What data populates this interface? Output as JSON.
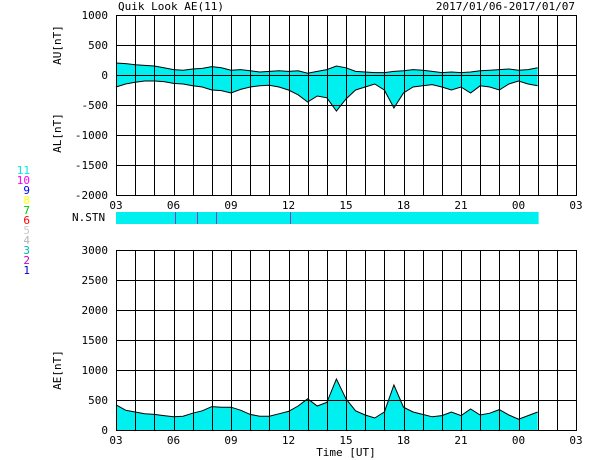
{
  "header": {
    "title": "Quik Look AE(11)",
    "date_range": "2017/01/06-2017/01/07"
  },
  "station_legend": [
    {
      "label": "11",
      "color": "#00e8e8"
    },
    {
      "label": "10",
      "color": "#ff00ff"
    },
    {
      "label": "9",
      "color": "#0000ff"
    },
    {
      "label": "8",
      "color": "#ffff00"
    },
    {
      "label": "7",
      "color": "#00c800"
    },
    {
      "label": "6",
      "color": "#ff0000"
    },
    {
      "label": "5",
      "color": "#c8c8c8"
    },
    {
      "label": "4",
      "color": "#b4b4b4"
    },
    {
      "label": "3",
      "color": "#00b4b4"
    },
    {
      "label": "2",
      "color": "#c800c8"
    },
    {
      "label": "1",
      "color": "#0000c8"
    }
  ],
  "nstn": {
    "label": "N.STN",
    "color": "#00f0f0",
    "data_end_hour": 1.05,
    "markers": [
      6.1,
      7.2,
      8.2,
      12.1
    ],
    "marker_color": "#8040c0"
  },
  "colors": {
    "fill": "#00f0f0",
    "line": "#000000",
    "marker": "#8040c0"
  },
  "chart_data": [
    {
      "type": "area",
      "name": "AU/AL",
      "ylabel_top": "AU[nT]",
      "ylabel_bottom": "AL[nT]",
      "ylim": [
        -2000,
        1000
      ],
      "yticks": [
        1000,
        500,
        0,
        -500,
        -1000,
        -1500,
        -2000
      ],
      "xlim": [
        3,
        27
      ],
      "xticks": [
        "03",
        "06",
        "09",
        "12",
        "15",
        "18",
        "21",
        "00",
        "03"
      ],
      "grid": true,
      "x": [
        3.0,
        3.5,
        4.0,
        4.5,
        5.0,
        5.5,
        6.0,
        6.5,
        7.0,
        7.5,
        8.0,
        8.5,
        9.0,
        9.5,
        10.0,
        10.5,
        11.0,
        11.5,
        12.0,
        12.5,
        13.0,
        13.5,
        14.0,
        14.5,
        15.0,
        15.5,
        16.0,
        16.5,
        17.0,
        17.5,
        18.0,
        18.5,
        19.0,
        19.5,
        20.0,
        20.5,
        21.0,
        21.5,
        22.0,
        22.5,
        23.0,
        23.5,
        24.0,
        24.5,
        25.0
      ],
      "series": [
        {
          "name": "AU",
          "values": [
            200,
            190,
            170,
            160,
            150,
            120,
            90,
            80,
            100,
            110,
            140,
            120,
            80,
            90,
            70,
            50,
            60,
            70,
            60,
            70,
            30,
            60,
            90,
            150,
            120,
            60,
            50,
            40,
            40,
            60,
            70,
            90,
            80,
            60,
            40,
            50,
            40,
            50,
            70,
            80,
            90,
            100,
            80,
            90,
            120
          ]
        },
        {
          "name": "AL",
          "values": [
            -200,
            -150,
            -120,
            -100,
            -100,
            -110,
            -140,
            -150,
            -180,
            -200,
            -250,
            -260,
            -300,
            -240,
            -200,
            -180,
            -170,
            -200,
            -250,
            -330,
            -450,
            -350,
            -380,
            -600,
            -400,
            -250,
            -200,
            -150,
            -250,
            -550,
            -300,
            -200,
            -180,
            -160,
            -200,
            -250,
            -200,
            -300,
            -180,
            -200,
            -250,
            -150,
            -100,
            -150,
            -180
          ]
        }
      ]
    },
    {
      "type": "area",
      "name": "AE",
      "ylabel": "AE[nT]",
      "xlabel": "Time [UT]",
      "ylim": [
        0,
        3000
      ],
      "yticks": [
        3000,
        2500,
        2000,
        1500,
        1000,
        500,
        0
      ],
      "xlim": [
        3,
        27
      ],
      "xticks": [
        "03",
        "06",
        "09",
        "12",
        "15",
        "18",
        "21",
        "00",
        "03"
      ],
      "grid": true,
      "x": [
        3.0,
        3.5,
        4.0,
        4.5,
        5.0,
        5.5,
        6.0,
        6.5,
        7.0,
        7.5,
        8.0,
        8.5,
        9.0,
        9.5,
        10.0,
        10.5,
        11.0,
        11.5,
        12.0,
        12.5,
        13.0,
        13.5,
        14.0,
        14.5,
        15.0,
        15.5,
        16.0,
        16.5,
        17.0,
        17.5,
        18.0,
        18.5,
        19.0,
        19.5,
        20.0,
        20.5,
        21.0,
        21.5,
        22.0,
        22.5,
        23.0,
        23.5,
        24.0,
        24.5,
        25.0
      ],
      "values": [
        420,
        330,
        300,
        270,
        260,
        240,
        220,
        230,
        280,
        320,
        390,
        380,
        380,
        330,
        260,
        230,
        230,
        270,
        310,
        400,
        520,
        400,
        460,
        850,
        520,
        320,
        250,
        200,
        300,
        750,
        380,
        300,
        260,
        220,
        240,
        300,
        240,
        350,
        250,
        280,
        340,
        250,
        180,
        240,
        300
      ]
    }
  ]
}
